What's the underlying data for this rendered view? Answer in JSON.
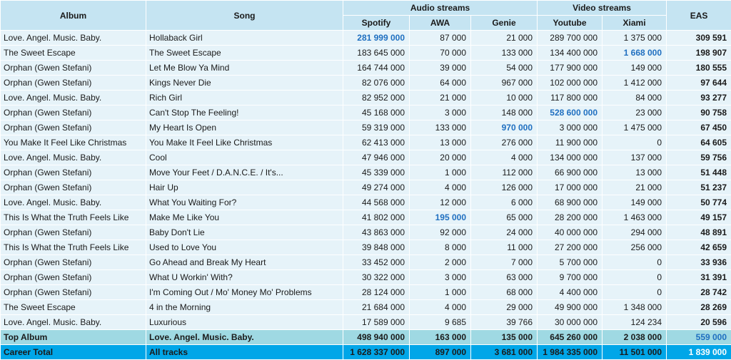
{
  "headers": {
    "album": "Album",
    "song": "Song",
    "audio": "Audio streams",
    "video": "Video streams",
    "eas": "EAS",
    "spotify": "Spotify",
    "awa": "AWA",
    "genie": "Genie",
    "youtube": "Youtube",
    "xiami": "Xiami"
  },
  "rows": [
    {
      "album": "Love. Angel. Music. Baby.",
      "song": "Hollaback Girl",
      "spotify": "281 999 000",
      "awa": "87 000",
      "genie": "21 000",
      "youtube": "289 700 000",
      "xiami": "1 375 000",
      "eas": "309 591",
      "hl": [
        "spotify"
      ]
    },
    {
      "album": "The Sweet Escape",
      "song": "The Sweet Escape",
      "spotify": "183 645 000",
      "awa": "70 000",
      "genie": "133 000",
      "youtube": "134 400 000",
      "xiami": "1 668 000",
      "eas": "198 907",
      "hl": [
        "xiami"
      ]
    },
    {
      "album": "Orphan (Gwen Stefani)",
      "song": "Let Me Blow Ya Mind",
      "spotify": "164 744 000",
      "awa": "39 000",
      "genie": "54 000",
      "youtube": "177 900 000",
      "xiami": "149 000",
      "eas": "180 555",
      "hl": []
    },
    {
      "album": "Orphan (Gwen Stefani)",
      "song": "Kings Never Die",
      "spotify": "82 076 000",
      "awa": "64 000",
      "genie": "967 000",
      "youtube": "102 000 000",
      "xiami": "1 412 000",
      "eas": "97 644",
      "hl": []
    },
    {
      "album": "Love. Angel. Music. Baby.",
      "song": "Rich Girl",
      "spotify": "82 952 000",
      "awa": "21 000",
      "genie": "10 000",
      "youtube": "117 800 000",
      "xiami": "84 000",
      "eas": "93 277",
      "hl": []
    },
    {
      "album": "Orphan (Gwen Stefani)",
      "song": "Can't Stop The Feeling!",
      "spotify": "45 168 000",
      "awa": "3 000",
      "genie": "148 000",
      "youtube": "528 600 000",
      "xiami": "23 000",
      "eas": "90 758",
      "hl": [
        "youtube"
      ]
    },
    {
      "album": "Orphan (Gwen Stefani)",
      "song": "My Heart Is Open",
      "spotify": "59 319 000",
      "awa": "133 000",
      "genie": "970 000",
      "youtube": "3 000 000",
      "xiami": "1 475 000",
      "eas": "67 450",
      "hl": [
        "genie"
      ]
    },
    {
      "album": "You Make It Feel Like Christmas",
      "song": "You Make It Feel Like Christmas",
      "spotify": "62 413 000",
      "awa": "13 000",
      "genie": "276 000",
      "youtube": "11 900 000",
      "xiami": "0",
      "eas": "64 605",
      "hl": []
    },
    {
      "album": "Love. Angel. Music. Baby.",
      "song": "Cool",
      "spotify": "47 946 000",
      "awa": "20 000",
      "genie": "4 000",
      "youtube": "134 000 000",
      "xiami": "137 000",
      "eas": "59 756",
      "hl": []
    },
    {
      "album": "Orphan (Gwen Stefani)",
      "song": "Move Your Feet / D.A.N.C.E. / It's...",
      "spotify": "45 339 000",
      "awa": "1 000",
      "genie": "112 000",
      "youtube": "66 900 000",
      "xiami": "13 000",
      "eas": "51 448",
      "hl": []
    },
    {
      "album": "Orphan (Gwen Stefani)",
      "song": "Hair Up",
      "spotify": "49 274 000",
      "awa": "4 000",
      "genie": "126 000",
      "youtube": "17 000 000",
      "xiami": "21 000",
      "eas": "51 237",
      "hl": []
    },
    {
      "album": "Love. Angel. Music. Baby.",
      "song": "What You Waiting For?",
      "spotify": "44 568 000",
      "awa": "12 000",
      "genie": "6 000",
      "youtube": "68 900 000",
      "xiami": "149 000",
      "eas": "50 774",
      "hl": []
    },
    {
      "album": "This Is What the Truth Feels Like",
      "song": "Make Me Like You",
      "spotify": "41 802 000",
      "awa": "195 000",
      "genie": "65 000",
      "youtube": "28 200 000",
      "xiami": "1 463 000",
      "eas": "49 157",
      "hl": [
        "awa"
      ]
    },
    {
      "album": "Orphan (Gwen Stefani)",
      "song": "Baby Don't Lie",
      "spotify": "43 863 000",
      "awa": "92 000",
      "genie": "24 000",
      "youtube": "40 000 000",
      "xiami": "294 000",
      "eas": "48 891",
      "hl": []
    },
    {
      "album": "This Is What the Truth Feels Like",
      "song": "Used to Love You",
      "spotify": "39 848 000",
      "awa": "8 000",
      "genie": "11 000",
      "youtube": "27 200 000",
      "xiami": "256 000",
      "eas": "42 659",
      "hl": []
    },
    {
      "album": "Orphan (Gwen Stefani)",
      "song": "Go Ahead and Break My Heart",
      "spotify": "33 452 000",
      "awa": "2 000",
      "genie": "7 000",
      "youtube": "5 700 000",
      "xiami": "0",
      "eas": "33 936",
      "hl": []
    },
    {
      "album": "Orphan (Gwen Stefani)",
      "song": "What U Workin' With?",
      "spotify": "30 322 000",
      "awa": "3 000",
      "genie": "63 000",
      "youtube": "9 700 000",
      "xiami": "0",
      "eas": "31 391",
      "hl": []
    },
    {
      "album": "Orphan (Gwen Stefani)",
      "song": "I'm Coming Out / Mo' Money Mo' Problems",
      "spotify": "28 124 000",
      "awa": "1 000",
      "genie": "68 000",
      "youtube": "4 400 000",
      "xiami": "0",
      "eas": "28 742",
      "hl": []
    },
    {
      "album": "The Sweet Escape",
      "song": "4 in the Morning",
      "spotify": "21 684 000",
      "awa": "4 000",
      "genie": "29 000",
      "youtube": "49 900 000",
      "xiami": "1 348 000",
      "eas": "28 269",
      "hl": []
    },
    {
      "album": "Love. Angel. Music. Baby.",
      "song": "Luxurious",
      "spotify": "17 589 000",
      "awa": "9 685",
      "genie": "39 766",
      "youtube": "30 000 000",
      "xiami": "124 234",
      "eas": "20 596",
      "hl": []
    }
  ],
  "top_album": {
    "label": "Top Album",
    "song": "Love. Angel. Music. Baby.",
    "spotify": "498 940 000",
    "awa": "163 000",
    "genie": "135 000",
    "youtube": "645 260 000",
    "xiami": "2 038 000",
    "eas": "559 000"
  },
  "career_total": {
    "label": "Career Total",
    "song": "All tracks",
    "spotify": "1 628 337 000",
    "awa": "897 000",
    "genie": "3 681 000",
    "youtube": "1 984 335 000",
    "xiami": "11 501 000",
    "eas": "1 839 000"
  },
  "colors": {
    "header_bg": "#c5e4f2",
    "row_bg": "#e6f3f9",
    "top_bg": "#9fd9e3",
    "career_bg": "#00a6e8",
    "highlight": "#1f6fc0"
  }
}
